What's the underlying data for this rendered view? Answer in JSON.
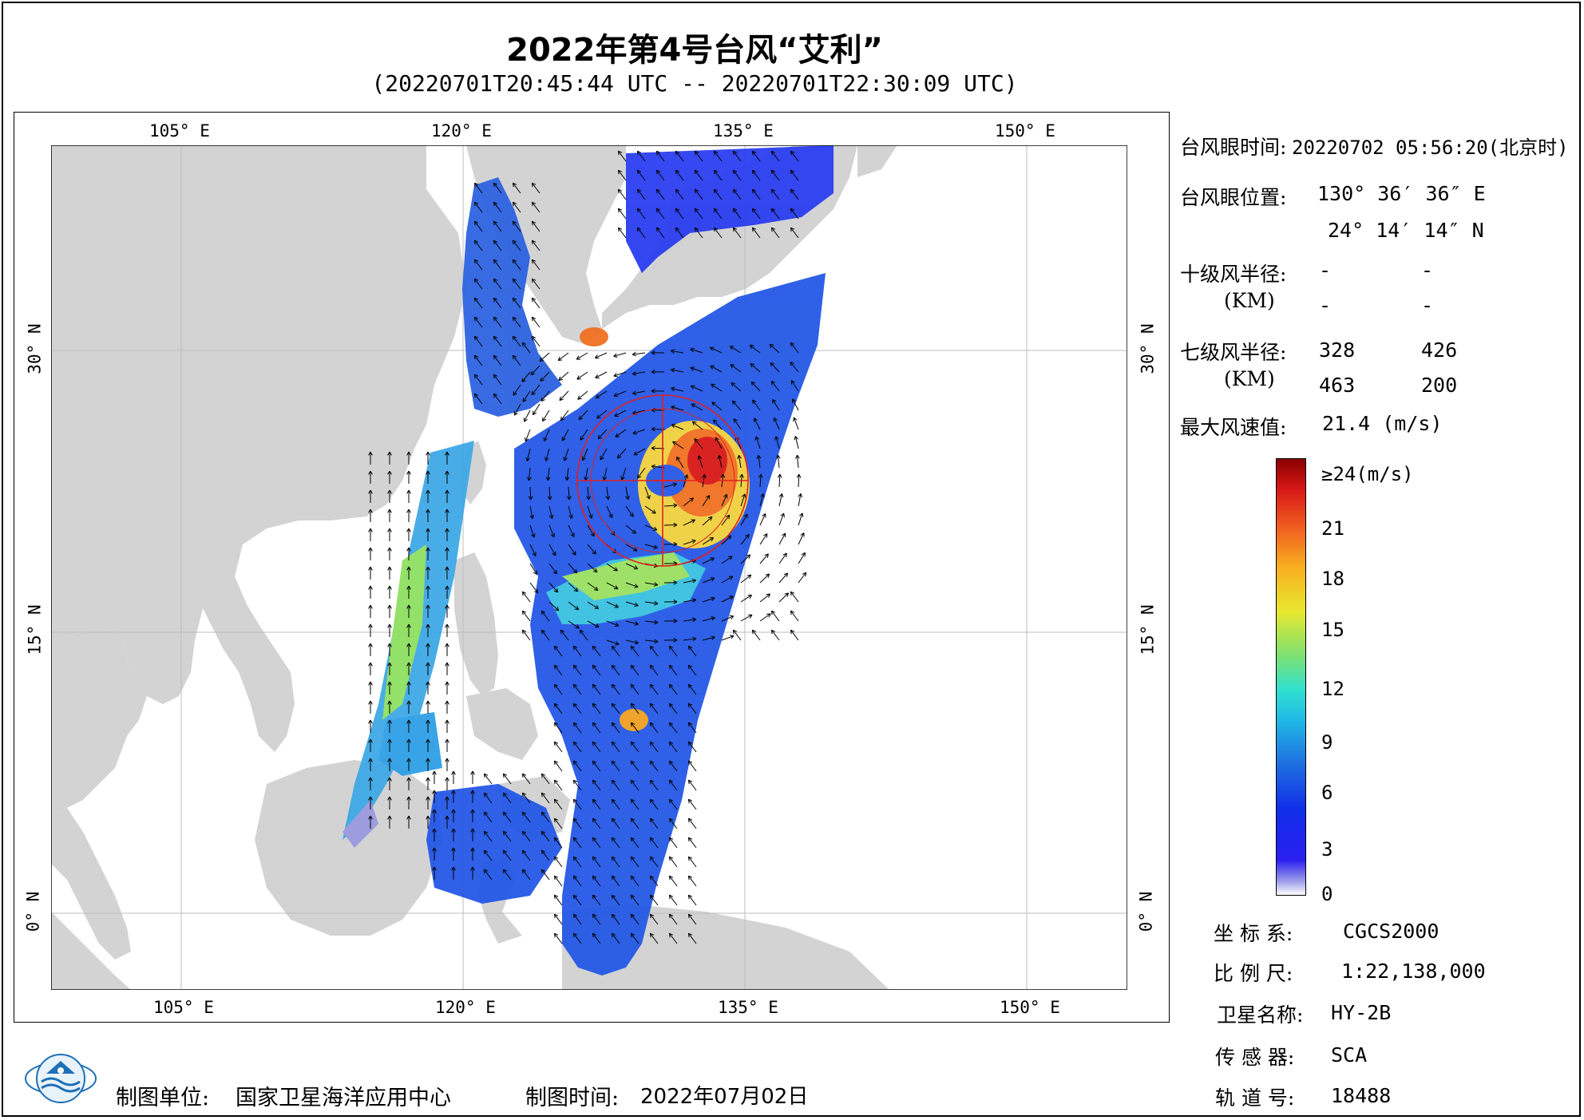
{
  "title": "2022年第4号台风“艾利”",
  "subtitle": "(20220701T20:45:44 UTC -- 20220701T22:30:09 UTC)",
  "map": {
    "lon_labels": [
      "105° E",
      "120° E",
      "135° E",
      "150° E"
    ],
    "lat_labels": [
      "30° N",
      "15° N",
      "0° N"
    ],
    "land_color": "#d3d3d3",
    "ocean_color": "#ffffff",
    "track_color": "#e02020"
  },
  "info": {
    "eye_time_label": "台风眼时间:",
    "eye_time_value": "20220702 05:56:20(北京时)",
    "eye_pos_label": "台风眼位置:",
    "eye_lon": "130° 36′ 36″ E",
    "eye_lat": "24° 14′ 14″ N",
    "r10_label": "十级风半径:",
    "r10_unit": "(KM)",
    "r10_values": [
      "-",
      "-",
      "-",
      "-"
    ],
    "r7_label": "七级风半径:",
    "r7_unit": "(KM)",
    "r7_values": [
      "328",
      "426",
      "463",
      "200"
    ],
    "max_wind_label": "最大风速值:",
    "max_wind_value": "21.4  (m/s)"
  },
  "colorbar": {
    "top_label": "≥24(m/s)",
    "ticks": [
      "21",
      "18",
      "15",
      "12",
      "9",
      "6",
      "3",
      "0"
    ],
    "colors": [
      "#ffffff",
      "#a0a0e8",
      "#2b1ff0",
      "#1e6fe0",
      "#20b8e6",
      "#7ee070",
      "#e8e830",
      "#f06020",
      "#d81818",
      "#8a0000"
    ]
  },
  "meta": {
    "coord_label": "坐 标 系:",
    "coord_value": "CGCS2000",
    "scale_label": "比 例 尺:",
    "scale_value": "1:22,138,000",
    "sat_label": "卫星名称:",
    "sat_value": "HY-2B",
    "sensor_label": "传 感 器:",
    "sensor_value": "SCA",
    "orbit_label": "轨 道 号:",
    "orbit_value": "18488"
  },
  "footer": {
    "org_label": "制图单位:",
    "org_value": "国家卫星海洋应用中心",
    "date_label": "制图时间:",
    "date_value": "2022年07月02日"
  }
}
